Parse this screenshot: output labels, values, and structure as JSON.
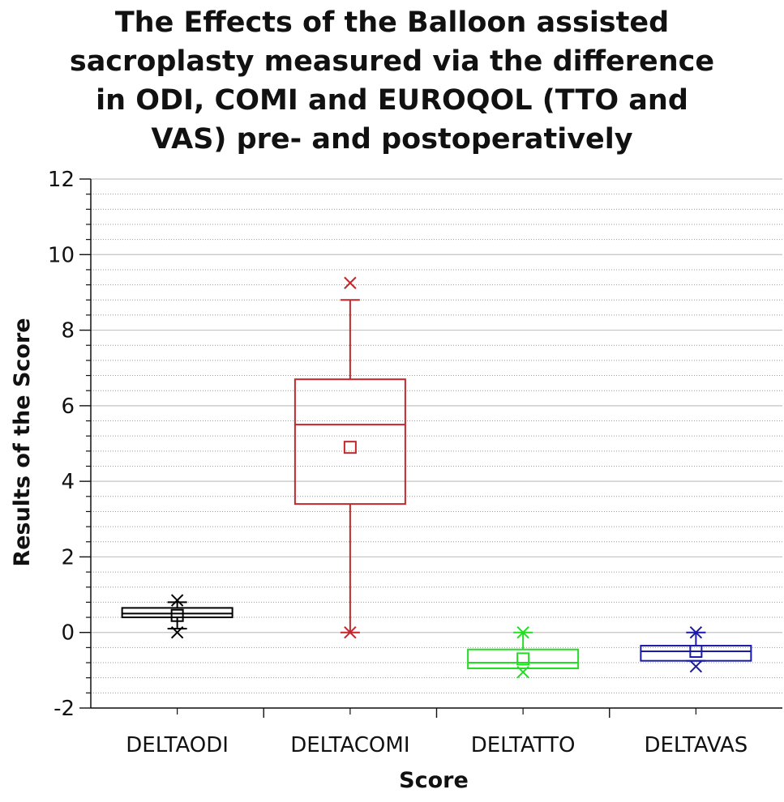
{
  "chart_data": {
    "type": "box",
    "title_lines": [
      "The Effects of the Balloon assisted",
      "sacroplasty measured via the difference",
      "in ODI, COMI and EUROQOL (TTO and",
      "VAS) pre- and postoperatively"
    ],
    "xlabel": "Score",
    "ylabel": "Results of the Score",
    "ylim": [
      -2,
      12
    ],
    "y_major_ticks": [
      -2,
      0,
      2,
      4,
      6,
      8,
      10,
      12
    ],
    "y_minor_step": 0.4,
    "grid": "horizontal-dotted",
    "categories": [
      "DELTAODI",
      "DELTACOMI",
      "DELTATTO",
      "DELTAVAS"
    ],
    "series": [
      {
        "name": "DELTAODI",
        "color": "#000000",
        "whisker_low": 0.1,
        "q1": 0.4,
        "median": 0.5,
        "q3": 0.65,
        "whisker_high": 0.8,
        "mean": 0.45,
        "min_marker": 0.0,
        "max_marker": 0.85
      },
      {
        "name": "DELTACOMI",
        "color": "#c0282d",
        "whisker_low": 0.0,
        "q1": 3.4,
        "median": 5.5,
        "q3": 6.7,
        "whisker_high": 8.8,
        "mean": 4.9,
        "min_marker": 0.0,
        "max_marker": 9.25
      },
      {
        "name": "DELTATTO",
        "color": "#22dd22",
        "whisker_low": -0.95,
        "q1": -0.95,
        "median": -0.8,
        "q3": -0.45,
        "whisker_high": 0.0,
        "mean": -0.7,
        "min_marker": -1.05,
        "max_marker": 0.0
      },
      {
        "name": "DELTAVAS",
        "color": "#1a1aaa",
        "whisker_low": -0.75,
        "q1": -0.75,
        "median": -0.5,
        "q3": -0.35,
        "whisker_high": 0.0,
        "mean": -0.5,
        "min_marker": -0.9,
        "max_marker": 0.0
      }
    ]
  }
}
